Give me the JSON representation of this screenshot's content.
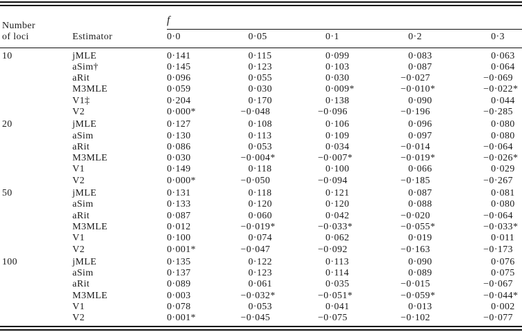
{
  "table": {
    "loci_header_line1": "Number",
    "loci_header_line2": "of loci",
    "estimator_header": "Estimator",
    "f_group_header": "f",
    "f_levels": [
      "0·0",
      "0·05",
      "0·1",
      "0·2",
      "0·3"
    ],
    "groups": [
      {
        "loci": "10",
        "rows": [
          {
            "estimator": "jMLE",
            "values": [
              "0·141",
              "0·115",
              "0·099",
              "0·083",
              "0·063"
            ]
          },
          {
            "estimator": "aSim†",
            "values": [
              "0·145",
              "0·123",
              "0·103",
              "0·087",
              "0·064"
            ]
          },
          {
            "estimator": "aRit",
            "values": [
              "0·096",
              "0·055",
              "0·030",
              "−0·027",
              "−0·069"
            ]
          },
          {
            "estimator": "M3MLE",
            "values": [
              "0·059",
              "0·030",
              "0·009*",
              "−0·010*",
              "−0·022*"
            ]
          },
          {
            "estimator": "V1‡",
            "values": [
              "0·204",
              "0·170",
              "0·138",
              "0·090",
              "0·044"
            ]
          },
          {
            "estimator": "V2",
            "values": [
              "0·000*",
              "−0·048",
              "−0·096",
              "−0·196",
              "−0·285"
            ]
          }
        ]
      },
      {
        "loci": "20",
        "rows": [
          {
            "estimator": "jMLE",
            "values": [
              "0·127",
              "0·108",
              "0·106",
              "0·096",
              "0·080"
            ]
          },
          {
            "estimator": "aSim",
            "values": [
              "0·130",
              "0·113",
              "0·109",
              "0·097",
              "0·080"
            ]
          },
          {
            "estimator": "aRit",
            "values": [
              "0·086",
              "0·053",
              "0·034",
              "−0·014",
              "−0·064"
            ]
          },
          {
            "estimator": "M3MLE",
            "values": [
              "0·030",
              "−0·004*",
              "−0·007*",
              "−0·019*",
              "−0·026*"
            ]
          },
          {
            "estimator": "V1",
            "values": [
              "0·149",
              "0·118",
              "0·100",
              "0·066",
              "0·029"
            ]
          },
          {
            "estimator": "V2",
            "values": [
              "0·000*",
              "−0·050",
              "−0·094",
              "−0·185",
              "−0·267"
            ]
          }
        ]
      },
      {
        "loci": "50",
        "rows": [
          {
            "estimator": "jMLE",
            "values": [
              "0·131",
              "0·118",
              "0·121",
              "0·087",
              "0·081"
            ]
          },
          {
            "estimator": "aSim",
            "values": [
              "0·133",
              "0·120",
              "0·120",
              "0·088",
              "0·080"
            ]
          },
          {
            "estimator": "aRit",
            "values": [
              "0·087",
              "0·060",
              "0·042",
              "−0·020",
              "−0·064"
            ]
          },
          {
            "estimator": "M3MLE",
            "values": [
              "0·012",
              "−0·019*",
              "−0·033*",
              "−0·055*",
              "−0·033*"
            ]
          },
          {
            "estimator": "V1",
            "values": [
              "0·100",
              "0·074",
              "0·062",
              "0·019",
              "0·011"
            ]
          },
          {
            "estimator": "V2",
            "values": [
              "0·001*",
              "−0·047",
              "−0·092",
              "−0·163",
              "−0·173"
            ]
          }
        ]
      },
      {
        "loci": "100",
        "rows": [
          {
            "estimator": "jMLE",
            "values": [
              "0·135",
              "0·122",
              "0·113",
              "0·090",
              "0·076"
            ]
          },
          {
            "estimator": "aSim",
            "values": [
              "0·137",
              "0·123",
              "0·114",
              "0·089",
              "0·075"
            ]
          },
          {
            "estimator": "aRit",
            "values": [
              "0·089",
              "0·061",
              "0·035",
              "−0·015",
              "−0·067"
            ]
          },
          {
            "estimator": "M3MLE",
            "values": [
              "0·003",
              "−0·032*",
              "−0·051*",
              "−0·059*",
              "−0·044*"
            ]
          },
          {
            "estimator": "V1",
            "values": [
              "0·078",
              "0·053",
              "0·041",
              "0·013",
              "0·002"
            ]
          },
          {
            "estimator": "V2",
            "values": [
              "0·001*",
              "−0·045",
              "−0·075",
              "−0·102",
              "−0·077"
            ]
          }
        ]
      }
    ]
  }
}
